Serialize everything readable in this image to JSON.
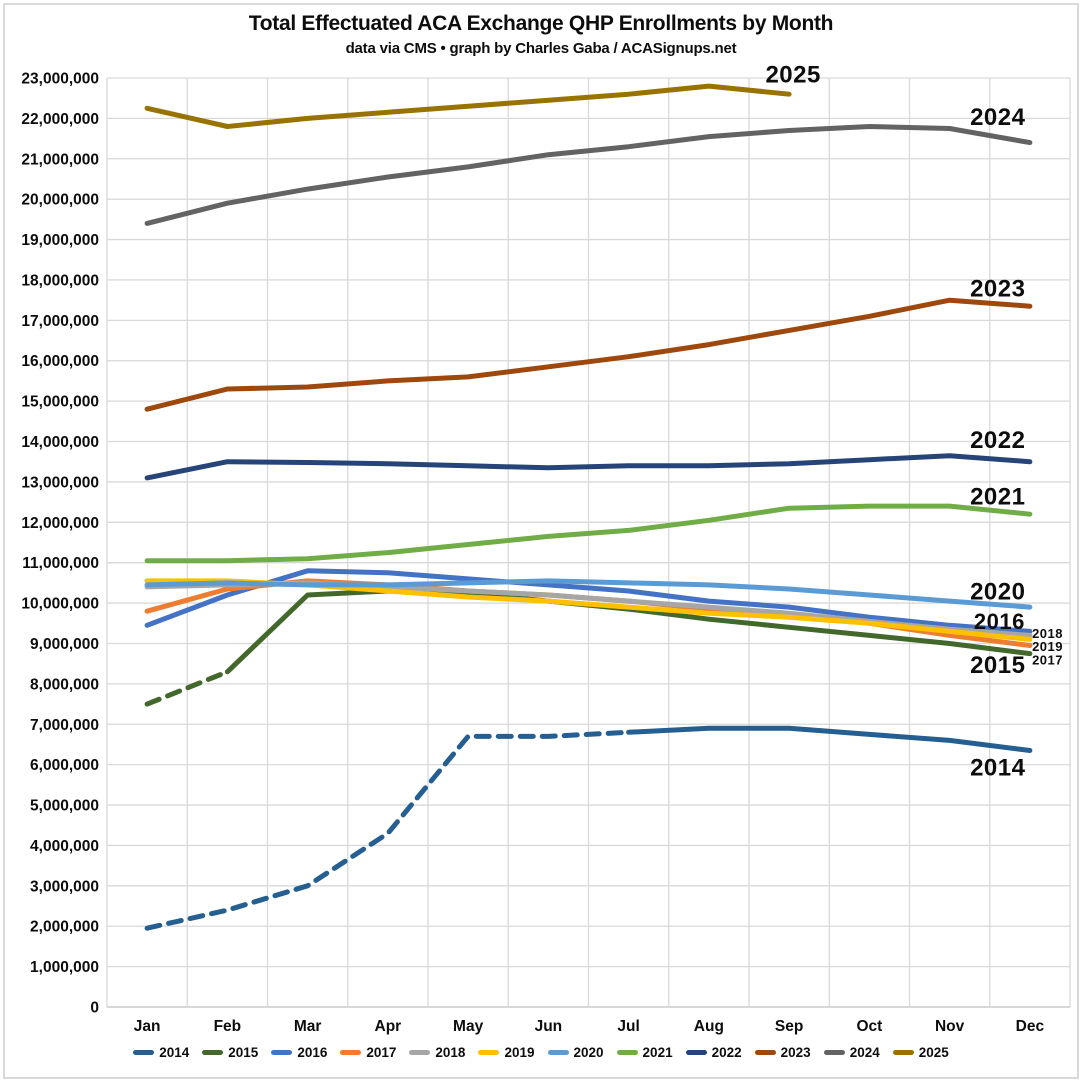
{
  "header": {
    "title": "Total Effectuated ACA Exchange QHP Enrollments by Month",
    "subtitle": "data via CMS • graph by Charles Gaba / ACASignups.net"
  },
  "chart_data": {
    "type": "line",
    "categories": [
      "Jan",
      "Feb",
      "Mar",
      "Apr",
      "May",
      "Jun",
      "Jul",
      "Aug",
      "Sep",
      "Oct",
      "Nov",
      "Dec"
    ],
    "y_axis": {
      "min": 0,
      "max": 23000000,
      "tick_step": 1000000,
      "tick_format": "#,##0"
    },
    "grid": true,
    "legend_position": "bottom",
    "series": [
      {
        "name": "2014",
        "color": "#255E91",
        "dashed_through": 6,
        "values": [
          1950000,
          2400000,
          3000000,
          4300000,
          6700000,
          6700000,
          6800000,
          6900000,
          6900000,
          6750000,
          6600000,
          6350000
        ]
      },
      {
        "name": "2015",
        "color": "#43682B",
        "dashed_through": 1,
        "values": [
          7500000,
          8300000,
          10200000,
          10300000,
          10250000,
          10050000,
          9850000,
          9600000,
          9400000,
          9200000,
          9000000,
          8750000
        ]
      },
      {
        "name": "2016",
        "color": "#4472C4",
        "dashed_through": null,
        "values": [
          9450000,
          10200000,
          10800000,
          10750000,
          10600000,
          10450000,
          10300000,
          10050000,
          9900000,
          9650000,
          9450000,
          9300000
        ]
      },
      {
        "name": "2017",
        "color": "#ED7D31",
        "dashed_through": null,
        "values": [
          9800000,
          10350000,
          10550000,
          10450000,
          10300000,
          10200000,
          10050000,
          9850000,
          9700000,
          9500000,
          9200000,
          8950000
        ]
      },
      {
        "name": "2018",
        "color": "#A6A6A6",
        "dashed_through": null,
        "values": [
          10400000,
          10450000,
          10500000,
          10400000,
          10300000,
          10200000,
          10050000,
          9900000,
          9750000,
          9550000,
          9350000,
          9200000
        ]
      },
      {
        "name": "2019",
        "color": "#FFC000",
        "dashed_through": null,
        "values": [
          10550000,
          10550000,
          10450000,
          10300000,
          10150000,
          10050000,
          9900000,
          9750000,
          9650000,
          9500000,
          9300000,
          9100000
        ]
      },
      {
        "name": "2020",
        "color": "#5B9BD5",
        "dashed_through": null,
        "values": [
          10450000,
          10500000,
          10450000,
          10450000,
          10500000,
          10550000,
          10500000,
          10450000,
          10350000,
          10200000,
          10050000,
          9900000
        ]
      },
      {
        "name": "2021",
        "color": "#70AD47",
        "dashed_through": null,
        "values": [
          11050000,
          11050000,
          11100000,
          11250000,
          11450000,
          11650000,
          11800000,
          12050000,
          12350000,
          12400000,
          12400000,
          12200000
        ]
      },
      {
        "name": "2022",
        "color": "#264478",
        "dashed_through": null,
        "values": [
          13100000,
          13500000,
          13480000,
          13450000,
          13400000,
          13350000,
          13400000,
          13400000,
          13450000,
          13550000,
          13650000,
          13500000
        ]
      },
      {
        "name": "2023",
        "color": "#9E480E",
        "dashed_through": null,
        "values": [
          14800000,
          15300000,
          15350000,
          15500000,
          15600000,
          15850000,
          16100000,
          16400000,
          16750000,
          17100000,
          17500000,
          17350000
        ]
      },
      {
        "name": "2024",
        "color": "#636363",
        "dashed_through": null,
        "values": [
          19400000,
          19900000,
          20250000,
          20550000,
          20800000,
          21100000,
          21300000,
          21550000,
          21700000,
          21800000,
          21750000,
          21400000
        ]
      },
      {
        "name": "2025",
        "color": "#997300",
        "dashed_through": null,
        "values": [
          22250000,
          21800000,
          22000000,
          22150000,
          22300000,
          22450000,
          22600000,
          22800000,
          22600000,
          null,
          null,
          null
        ]
      }
    ],
    "annotations": [
      {
        "text": "2025",
        "x_month": 8.05,
        "value": 23100000,
        "size": "large"
      },
      {
        "text": "2024",
        "x_month": 10.6,
        "value": 22050000,
        "size": "large"
      },
      {
        "text": "2023",
        "x_month": 10.6,
        "value": 17800000,
        "size": "large"
      },
      {
        "text": "2022",
        "x_month": 10.6,
        "value": 14050000,
        "size": "large"
      },
      {
        "text": "2021",
        "x_month": 10.6,
        "value": 12650000,
        "size": "large"
      },
      {
        "text": "2020",
        "x_month": 10.6,
        "value": 10300000,
        "size": "large"
      },
      {
        "text": "2016",
        "x_month": 10.62,
        "value": 9550000,
        "size": "medium"
      },
      {
        "text": "2018",
        "x_month": 11.22,
        "value": 9250000,
        "size": "small"
      },
      {
        "text": "2019",
        "x_month": 11.22,
        "value": 8930000,
        "size": "small"
      },
      {
        "text": "2017",
        "x_month": 11.22,
        "value": 8590000,
        "size": "small"
      },
      {
        "text": "2015",
        "x_month": 10.6,
        "value": 8480000,
        "size": "large"
      },
      {
        "text": "2014",
        "x_month": 10.6,
        "value": 5950000,
        "size": "large"
      }
    ]
  },
  "colors": {
    "background": "#FFFFFF",
    "gridline": "#D9D9D9",
    "zero_line": "#BFBFBF",
    "text": "#0D0D0D"
  }
}
